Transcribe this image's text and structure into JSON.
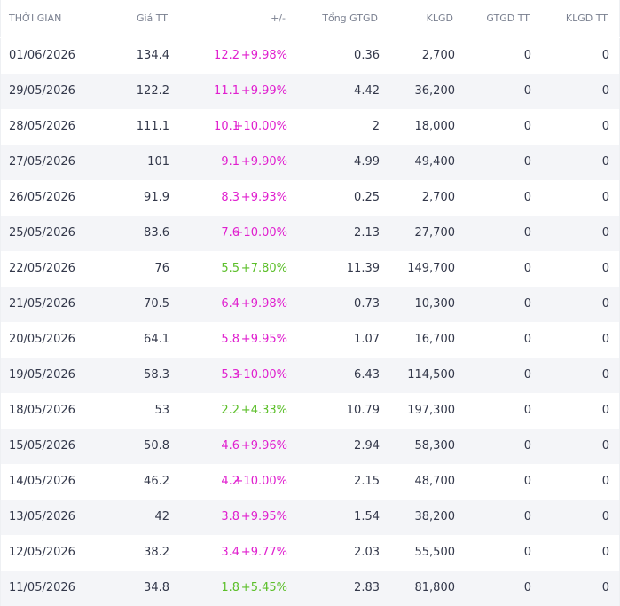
{
  "table": {
    "header": [
      "THỜI GIAN",
      "Giá TT",
      "+/-",
      "Tổng GTGD",
      "KLGD",
      "GTGD TT",
      "KLGD TT"
    ],
    "change_colors": [
      "#e020cf",
      "#e020cf",
      "#e020cf",
      "#e020cf",
      "#e020cf",
      "#e020cf",
      "#5cbf2a",
      "#e020cf",
      "#e020cf",
      "#e020cf",
      "#5cbf2a",
      "#e020cf",
      "#e020cf",
      "#e020cf",
      "#e020cf",
      "#5cbf2a"
    ],
    "rows": [
      [
        "01/06/2026",
        "134.4",
        "12.2",
        "+9.98%",
        "0.36",
        "2,700",
        "0",
        "0"
      ],
      [
        "29/05/2026",
        "122.2",
        "11.1",
        "+9.99%",
        "4.42",
        "36,200",
        "0",
        "0"
      ],
      [
        "28/05/2026",
        "111.1",
        "10.1",
        "+10.00%",
        "2",
        "18,000",
        "0",
        "0"
      ],
      [
        "27/05/2026",
        "101",
        "9.1",
        "+9.90%",
        "4.99",
        "49,400",
        "0",
        "0"
      ],
      [
        "26/05/2026",
        "91.9",
        "8.3",
        "+9.93%",
        "0.25",
        "2,700",
        "0",
        "0"
      ],
      [
        "25/05/2026",
        "83.6",
        "7.6",
        "+10.00%",
        "2.13",
        "27,700",
        "0",
        "0"
      ],
      [
        "22/05/2026",
        "76",
        "5.5",
        "+7.80%",
        "11.39",
        "149,700",
        "0",
        "0"
      ],
      [
        "21/05/2026",
        "70.5",
        "6.4",
        "+9.98%",
        "0.73",
        "10,300",
        "0",
        "0"
      ],
      [
        "20/05/2026",
        "64.1",
        "5.8",
        "+9.95%",
        "1.07",
        "16,700",
        "0",
        "0"
      ],
      [
        "19/05/2026",
        "58.3",
        "5.3",
        "+10.00%",
        "6.43",
        "114,500",
        "0",
        "0"
      ],
      [
        "18/05/2026",
        "53",
        "2.2",
        "+4.33%",
        "10.79",
        "197,300",
        "0",
        "0"
      ],
      [
        "15/05/2026",
        "50.8",
        "4.6",
        "+9.96%",
        "2.94",
        "58,300",
        "0",
        "0"
      ],
      [
        "14/05/2026",
        "46.2",
        "4.2",
        "+10.00%",
        "2.15",
        "48,700",
        "0",
        "0"
      ],
      [
        "13/05/2026",
        "42",
        "3.8",
        "+9.95%",
        "1.54",
        "38,200",
        "0",
        "0"
      ],
      [
        "12/05/2026",
        "38.2",
        "3.4",
        "+9.77%",
        "2.03",
        "55,500",
        "0",
        "0"
      ],
      [
        "11/05/2026",
        "34.8",
        "1.8",
        "+5.45%",
        "2.83",
        "81,800",
        "0",
        "0"
      ]
    ]
  }
}
